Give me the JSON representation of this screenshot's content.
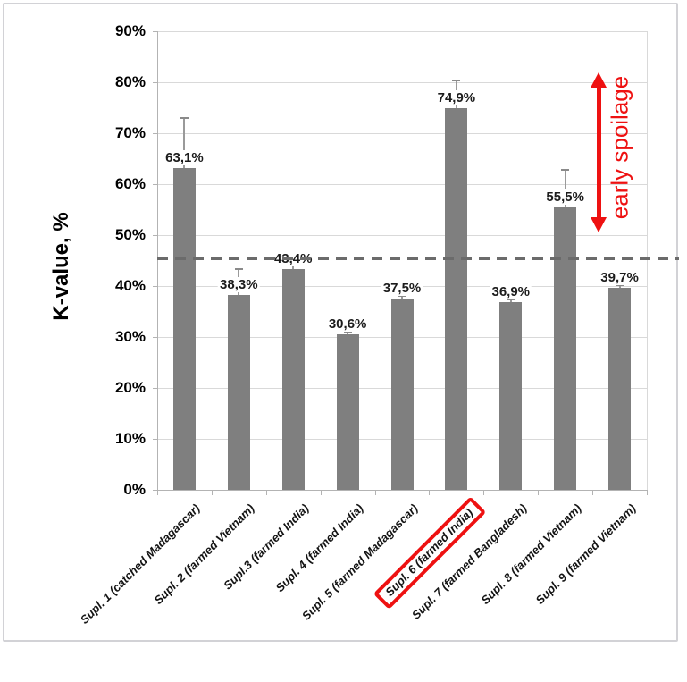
{
  "chart_data": {
    "type": "bar",
    "title": "",
    "ylabel": "K-value, %",
    "xlabel": "",
    "categories": [
      "Supl. 1 (catched Madagascar)",
      "Supl. 2 (farmed Vietnam)",
      "Supl.3 (farmed India)",
      "Supl. 4 (farmed India)",
      "Supl. 5 (farmed Madagascar)",
      "Supl. 6 (farmed India)",
      "Supl. 7 (farmed Bangladesh)",
      "Supl. 8 (farmed Vietnam)",
      "Supl. 9 (farmed Vietnam)"
    ],
    "values": [
      63.1,
      38.3,
      43.4,
      30.6,
      37.5,
      74.9,
      36.9,
      55.5,
      39.7
    ],
    "value_labels": [
      "63,1%",
      "38,3%",
      "43,4%",
      "30,6%",
      "37,5%",
      "74,9%",
      "36,9%",
      "55,5%",
      "39,7%"
    ],
    "error_upper_pct": [
      73.0,
      43.3,
      44.0,
      31.0,
      38.0,
      80.3,
      37.3,
      62.8,
      40.1
    ],
    "ylim": [
      0,
      90
    ],
    "ytick_step": 10,
    "ytick_labels": [
      "0%",
      "10%",
      "20%",
      "30%",
      "40%",
      "50%",
      "60%",
      "70%",
      "80%",
      "90%"
    ],
    "grid": true,
    "legend": false,
    "threshold": {
      "value": 45.3,
      "style": "dashed"
    },
    "highlighted_category_index": 5,
    "annotation": {
      "text": "early spoilage",
      "arrow_top_pct": 82,
      "arrow_bottom_pct": 50.5
    },
    "colors": {
      "bar": "#7f7f7f",
      "accent_red": "#ee1111",
      "grid": "#d9d9d9",
      "axis": "#b3b3b3",
      "threshold": "#6b6b6b"
    }
  }
}
